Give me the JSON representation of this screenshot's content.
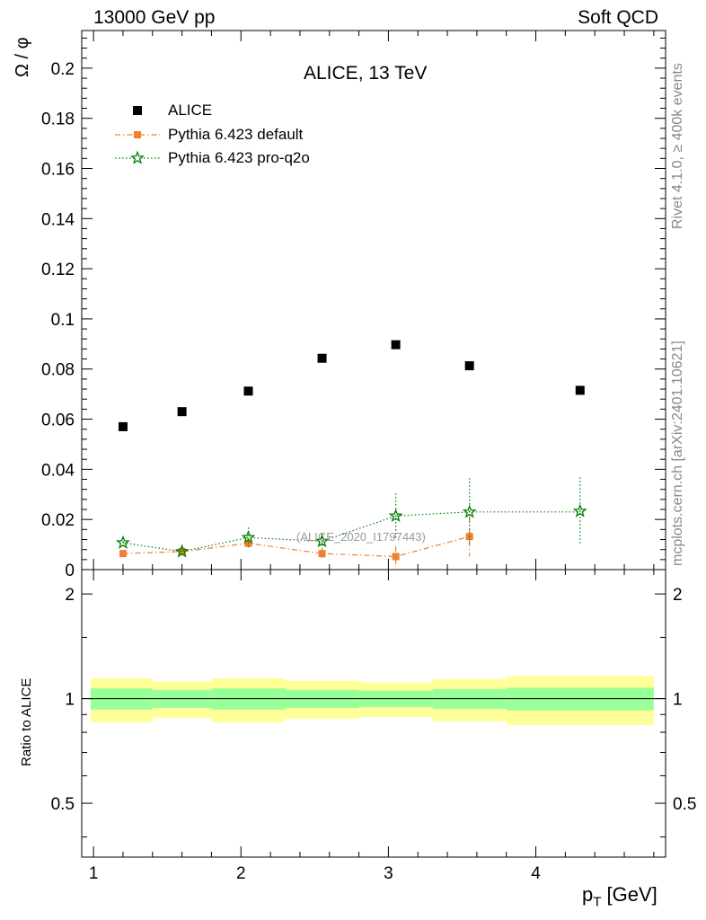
{
  "header": {
    "left": "13000 GeV pp",
    "right": "Soft QCD"
  },
  "side_labels": {
    "rivet": "Rivet 4.1.0, ≥ 400k events",
    "mcplots": "mcplots.cern.ch [arXiv:2401.10621]"
  },
  "colors": {
    "data": "#000000",
    "default": "#f08030",
    "pro_q2o": "#007f00",
    "band_inner": "#99ff99",
    "band_outer": "#ffff99",
    "watermark": "#999999"
  },
  "chart_data": {
    "type": "scatter",
    "title": "ALICE, 13 TeV",
    "watermark": "(ALICE_2020_I1797443)",
    "ylabel": "Ω / φ",
    "xlabel": "p_T [GeV]",
    "xlim": [
      0.92,
      4.88
    ],
    "ylim": [
      0,
      0.215
    ],
    "x_ticks": [
      1,
      2,
      3,
      4
    ],
    "x_tick_labels": [
      "1",
      "2",
      "3",
      "4"
    ],
    "y_ticks": [
      0,
      0.02,
      0.04,
      0.06,
      0.08,
      0.1,
      0.12,
      0.14,
      0.16,
      0.18,
      0.2
    ],
    "y_tick_labels": [
      "0",
      "0.02",
      "0.04",
      "0.06",
      "0.08",
      "0.1",
      "0.12",
      "0.14",
      "0.16",
      "0.18",
      "0.2"
    ],
    "series": [
      {
        "name": "ALICE",
        "marker": "square",
        "x": [
          1.2,
          1.6,
          2.05,
          2.55,
          3.05,
          3.55,
          4.3
        ],
        "y": [
          0.057,
          0.063,
          0.0712,
          0.0843,
          0.0897,
          0.0813,
          0.0715
        ],
        "yerr": [
          0,
          0,
          0,
          0,
          0,
          0,
          0
        ]
      },
      {
        "name": "Pythia 6.423 default",
        "marker": "square-small",
        "linestyle": "dashdot",
        "x": [
          1.2,
          1.6,
          2.05,
          2.55,
          3.05,
          3.55
        ],
        "y": [
          0.0064,
          0.0072,
          0.0105,
          0.0064,
          0.0052,
          0.0132
        ],
        "yerr": [
          0.0012,
          0.0015,
          0.002,
          0.002,
          0.004,
          0.008
        ]
      },
      {
        "name": "Pythia 6.423 pro-q2o",
        "marker": "star",
        "linestyle": "dotted",
        "x": [
          1.2,
          1.6,
          2.05,
          2.55,
          3.05,
          3.55,
          4.3
        ],
        "y": [
          0.0107,
          0.0072,
          0.0128,
          0.0113,
          0.0214,
          0.023,
          0.0233
        ],
        "yerr": [
          0.002,
          0.002,
          0.004,
          0.003,
          0.009,
          0.0135,
          0.0135
        ],
        "xerr_right": [
          0,
          0,
          0,
          0,
          0,
          0.75,
          0
        ]
      }
    ],
    "ratio": {
      "ylabel": "Ratio to ALICE",
      "ylim": [
        0.35,
        2.35
      ],
      "y_ticks": [
        0.5,
        1,
        2
      ],
      "y_tick_labels": [
        "0.5",
        "1",
        "2"
      ],
      "bins": [
        {
          "lo": 0.98,
          "hi": 1.4,
          "inner": [
            0.93,
            1.07
          ],
          "outer": [
            0.855,
            1.145
          ]
        },
        {
          "lo": 1.4,
          "hi": 1.8,
          "inner": [
            0.94,
            1.06
          ],
          "outer": [
            0.88,
            1.12
          ]
        },
        {
          "lo": 1.8,
          "hi": 2.3,
          "inner": [
            0.93,
            1.07
          ],
          "outer": [
            0.855,
            1.145
          ]
        },
        {
          "lo": 2.3,
          "hi": 2.8,
          "inner": [
            0.94,
            1.06
          ],
          "outer": [
            0.875,
            1.125
          ]
        },
        {
          "lo": 2.8,
          "hi": 3.3,
          "inner": [
            0.945,
            1.055
          ],
          "outer": [
            0.885,
            1.115
          ]
        },
        {
          "lo": 3.3,
          "hi": 3.8,
          "inner": [
            0.935,
            1.065
          ],
          "outer": [
            0.86,
            1.14
          ]
        },
        {
          "lo": 3.8,
          "hi": 4.8,
          "inner": [
            0.925,
            1.075
          ],
          "outer": [
            0.84,
            1.16
          ]
        }
      ]
    }
  }
}
